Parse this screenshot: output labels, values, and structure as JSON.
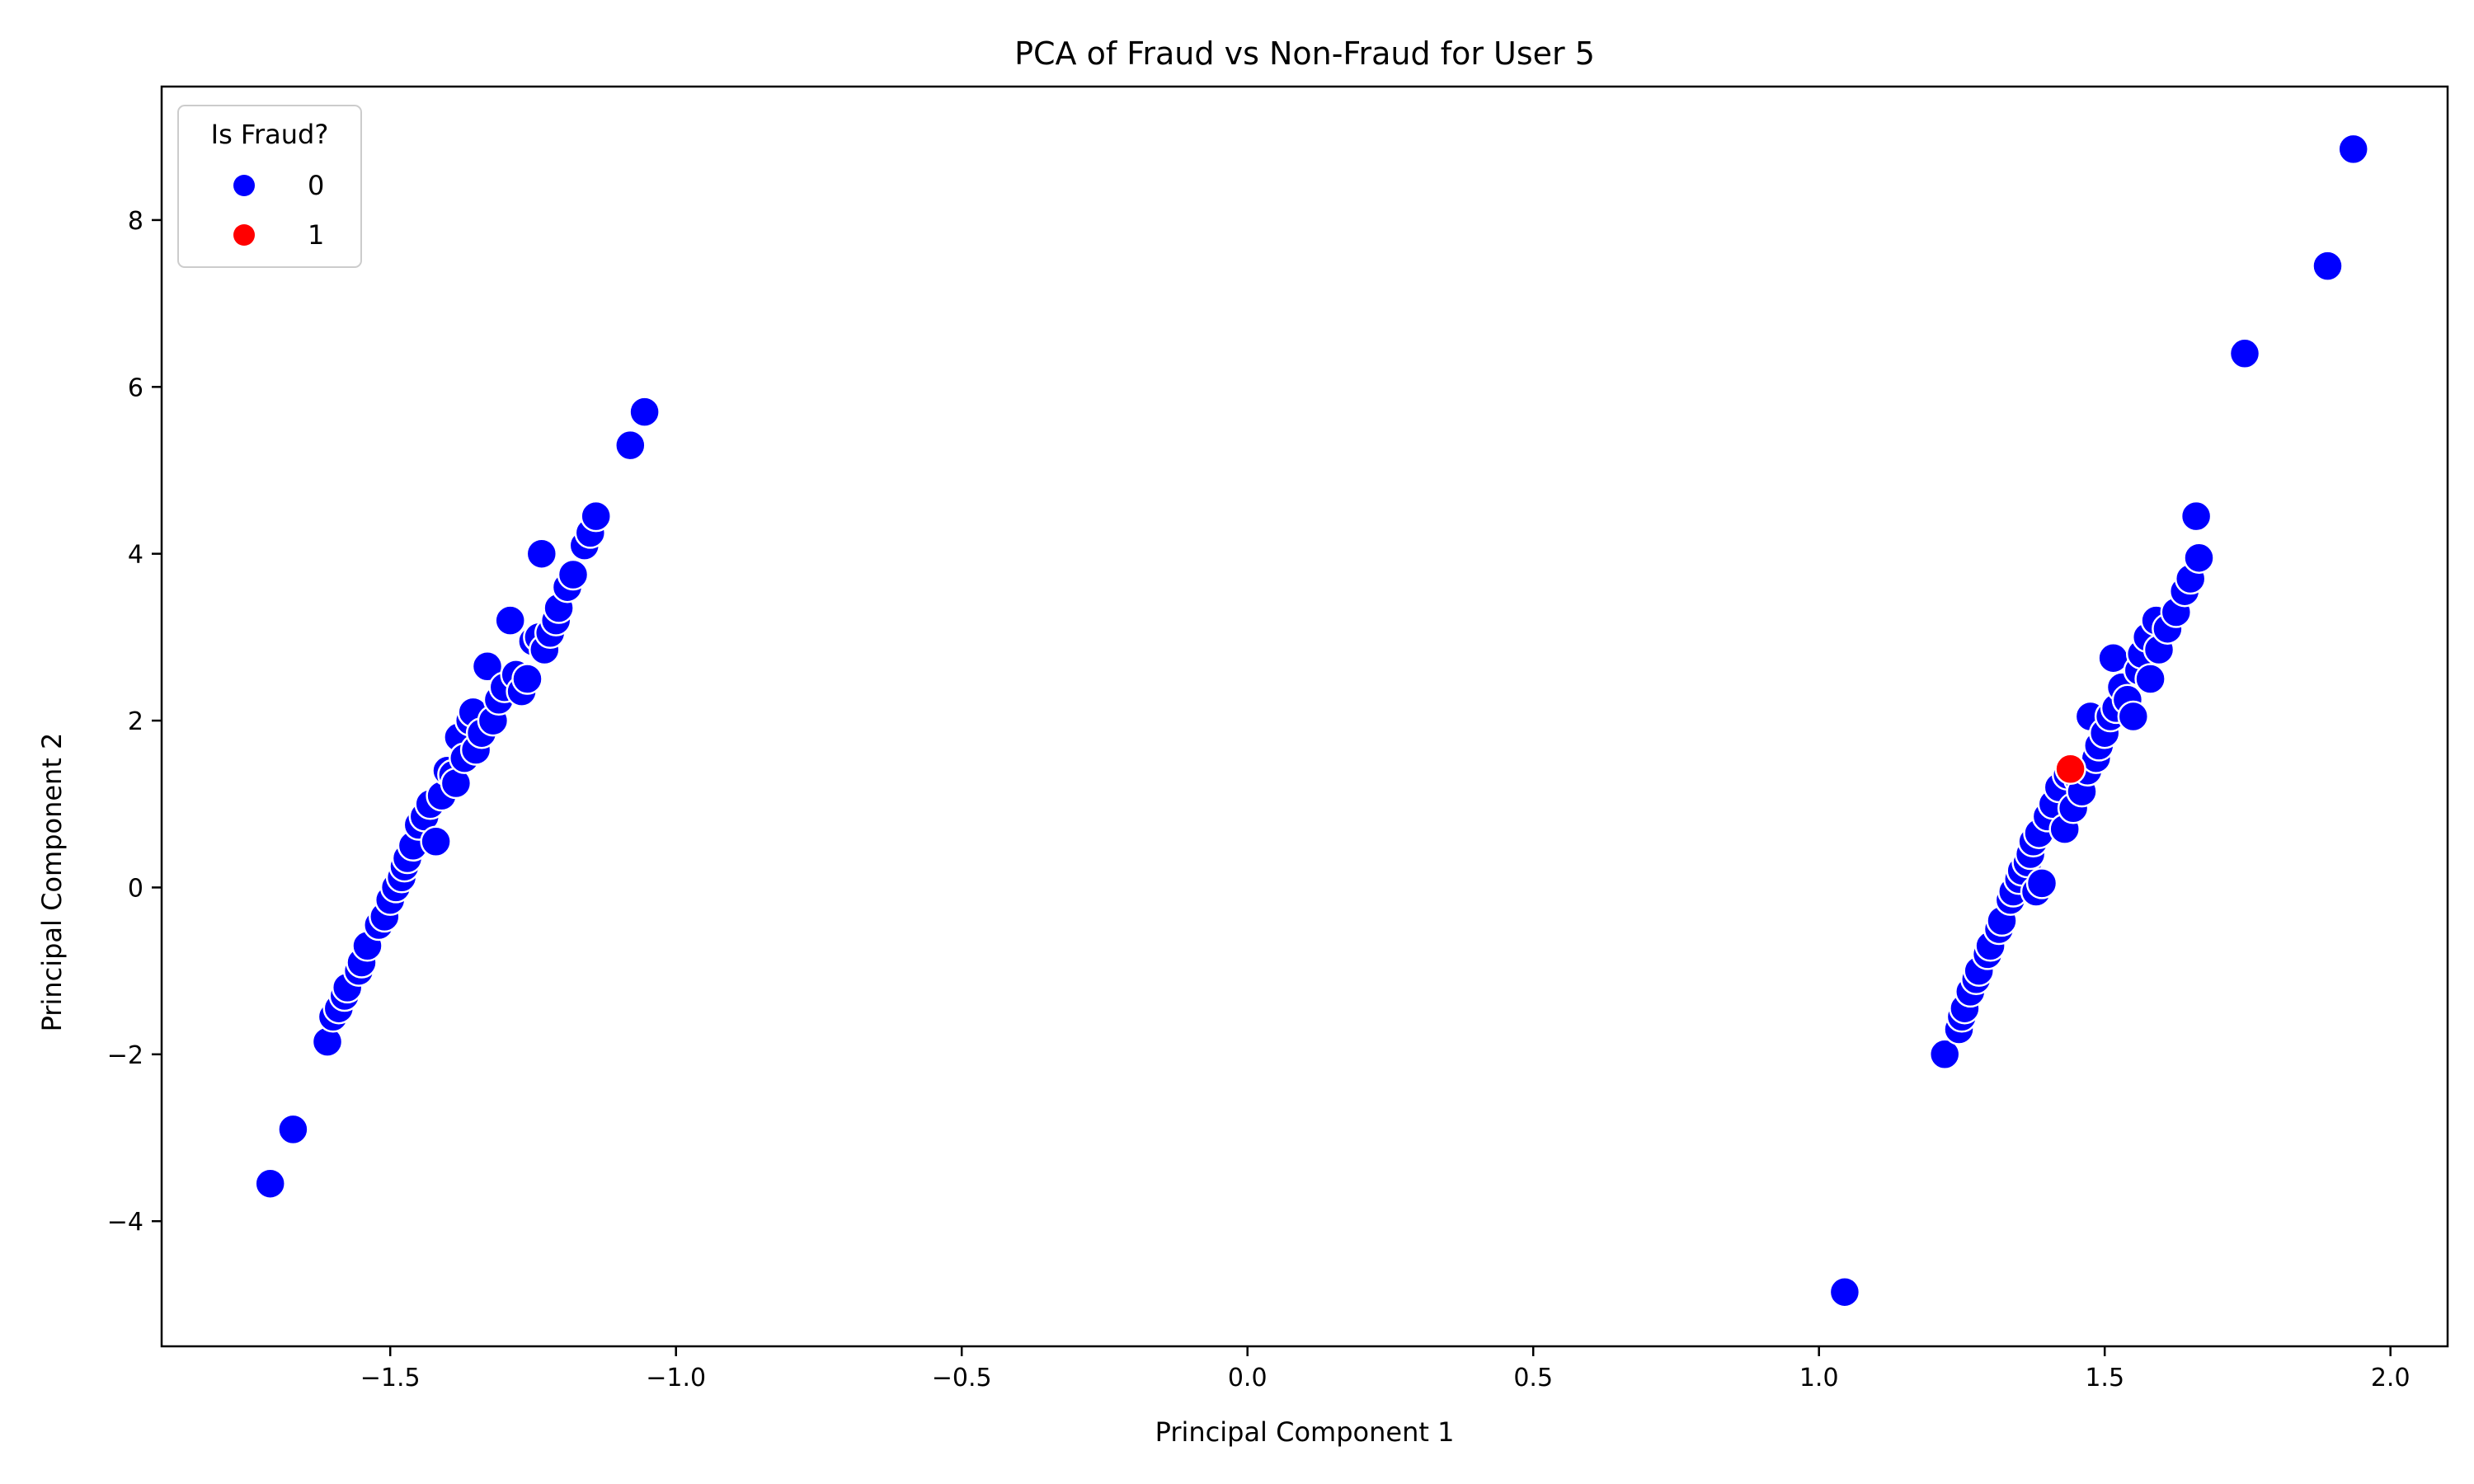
{
  "chart_data": {
    "type": "scatter",
    "title": "PCA of Fraud vs Non-Fraud for User 5",
    "xlabel": "Principal Component 1",
    "ylabel": "Principal Component 2",
    "xlim": [
      -1.9,
      2.1
    ],
    "ylim": [
      -5.5,
      9.6
    ],
    "xticks": [
      -1.5,
      -1.0,
      -0.5,
      0.0,
      0.5,
      1.0,
      1.5,
      2.0
    ],
    "xtick_labels": [
      "−1.5",
      "−1.0",
      "−0.5",
      "0.0",
      "0.5",
      "1.0",
      "1.5",
      "2.0"
    ],
    "yticks": [
      -4,
      -2,
      0,
      2,
      4,
      6,
      8
    ],
    "ytick_labels": [
      "−4",
      "−2",
      "0",
      "2",
      "4",
      "6",
      "8"
    ],
    "grid": false,
    "legend": {
      "title": "Is Fraud?",
      "placement": "top-left",
      "entries": [
        {
          "label": "0",
          "color": "#0000ff"
        },
        {
          "label": "1",
          "color": "#ff0000"
        }
      ]
    },
    "series": [
      {
        "name": "0",
        "color": "#0000ff",
        "points": [
          [
            -1.71,
            -3.55
          ],
          [
            -1.67,
            -2.9
          ],
          [
            -1.61,
            -1.85
          ],
          [
            -1.6,
            -1.55
          ],
          [
            -1.59,
            -1.45
          ],
          [
            -1.58,
            -1.3
          ],
          [
            -1.575,
            -1.2
          ],
          [
            -1.555,
            -1.0
          ],
          [
            -1.55,
            -0.9
          ],
          [
            -1.54,
            -0.7
          ],
          [
            -1.52,
            -0.45
          ],
          [
            -1.51,
            -0.35
          ],
          [
            -1.5,
            -0.15
          ],
          [
            -1.49,
            0.0
          ],
          [
            -1.48,
            0.12
          ],
          [
            -1.475,
            0.25
          ],
          [
            -1.47,
            0.35
          ],
          [
            -1.46,
            0.5
          ],
          [
            -1.45,
            0.75
          ],
          [
            -1.44,
            0.85
          ],
          [
            -1.43,
            1.0
          ],
          [
            -1.42,
            0.55
          ],
          [
            -1.41,
            1.1
          ],
          [
            -1.4,
            1.4
          ],
          [
            -1.39,
            1.35
          ],
          [
            -1.385,
            1.25
          ],
          [
            -1.38,
            1.8
          ],
          [
            -1.37,
            1.55
          ],
          [
            -1.36,
            2.0
          ],
          [
            -1.355,
            2.1
          ],
          [
            -1.35,
            1.65
          ],
          [
            -1.34,
            1.85
          ],
          [
            -1.33,
            2.65
          ],
          [
            -1.32,
            2.0
          ],
          [
            -1.31,
            2.25
          ],
          [
            -1.3,
            2.4
          ],
          [
            -1.29,
            3.2
          ],
          [
            -1.28,
            2.55
          ],
          [
            -1.27,
            2.35
          ],
          [
            -1.26,
            2.5
          ],
          [
            -1.25,
            2.95
          ],
          [
            -1.24,
            3.0
          ],
          [
            -1.235,
            4.0
          ],
          [
            -1.23,
            2.85
          ],
          [
            -1.22,
            3.05
          ],
          [
            -1.21,
            3.2
          ],
          [
            -1.205,
            3.35
          ],
          [
            -1.19,
            3.6
          ],
          [
            -1.18,
            3.75
          ],
          [
            -1.16,
            4.1
          ],
          [
            -1.15,
            4.25
          ],
          [
            -1.14,
            4.45
          ],
          [
            -1.08,
            5.3
          ],
          [
            -1.055,
            5.7
          ],
          [
            1.045,
            -4.85
          ],
          [
            1.22,
            -2.0
          ],
          [
            1.245,
            -1.7
          ],
          [
            1.25,
            -1.55
          ],
          [
            1.255,
            -1.45
          ],
          [
            1.265,
            -1.25
          ],
          [
            1.275,
            -1.1
          ],
          [
            1.28,
            -1.0
          ],
          [
            1.295,
            -0.8
          ],
          [
            1.3,
            -0.7
          ],
          [
            1.315,
            -0.5
          ],
          [
            1.32,
            -0.4
          ],
          [
            1.335,
            -0.15
          ],
          [
            1.34,
            -0.05
          ],
          [
            1.35,
            0.1
          ],
          [
            1.355,
            0.2
          ],
          [
            1.365,
            0.3
          ],
          [
            1.37,
            0.4
          ],
          [
            1.375,
            0.55
          ],
          [
            1.38,
            -0.05
          ],
          [
            1.385,
            0.65
          ],
          [
            1.39,
            0.05
          ],
          [
            1.4,
            0.85
          ],
          [
            1.41,
            1.0
          ],
          [
            1.42,
            1.2
          ],
          [
            1.43,
            0.7
          ],
          [
            1.435,
            1.35
          ],
          [
            1.445,
            0.95
          ],
          [
            1.455,
            1.3
          ],
          [
            1.46,
            1.15
          ],
          [
            1.47,
            1.4
          ],
          [
            1.475,
            2.05
          ],
          [
            1.485,
            1.55
          ],
          [
            1.49,
            1.7
          ],
          [
            1.5,
            1.85
          ],
          [
            1.51,
            2.05
          ],
          [
            1.515,
            2.75
          ],
          [
            1.52,
            2.15
          ],
          [
            1.53,
            2.4
          ],
          [
            1.54,
            2.25
          ],
          [
            1.55,
            2.05
          ],
          [
            1.56,
            2.6
          ],
          [
            1.565,
            2.8
          ],
          [
            1.575,
            3.0
          ],
          [
            1.58,
            2.5
          ],
          [
            1.59,
            3.2
          ],
          [
            1.595,
            2.85
          ],
          [
            1.61,
            3.1
          ],
          [
            1.625,
            3.3
          ],
          [
            1.64,
            3.55
          ],
          [
            1.65,
            3.7
          ],
          [
            1.66,
            4.45
          ],
          [
            1.665,
            3.95
          ],
          [
            1.745,
            6.4
          ],
          [
            1.89,
            7.45
          ],
          [
            1.935,
            8.85
          ]
        ]
      },
      {
        "name": "1",
        "color": "#ff0000",
        "points": [
          [
            1.44,
            1.42
          ]
        ]
      }
    ]
  }
}
